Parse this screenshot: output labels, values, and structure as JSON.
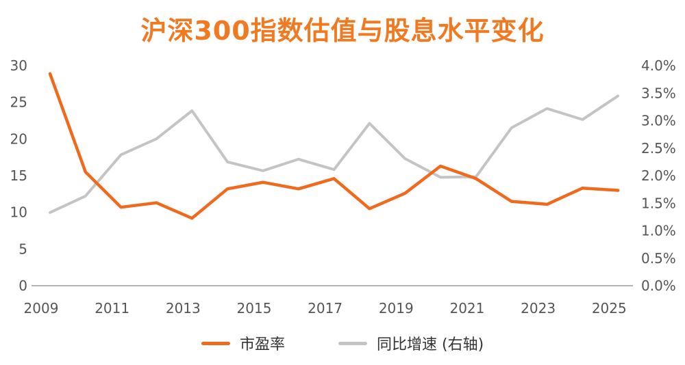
{
  "title": "沪深300指数估值与股息水平变化",
  "colors": {
    "title": "#f07a22",
    "pe": "#f06a1e",
    "yoy": "#c4c4c4",
    "axis": "#9a9a9a",
    "tick_text": "#555555"
  },
  "chart_data": {
    "type": "line",
    "title": "沪深300指数估值与股息水平变化",
    "x_ticks": [
      "2009",
      "2011",
      "2013",
      "2015",
      "2017",
      "2019",
      "2021",
      "2023",
      "2025"
    ],
    "y_left_ticks": [
      "0",
      "5",
      "10",
      "15",
      "20",
      "25",
      "30"
    ],
    "y_right_ticks": [
      "0.0%",
      "0.5%",
      "1.0%",
      "1.5%",
      "2.0%",
      "2.5%",
      "3.0%",
      "3.5%",
      "4.0%"
    ],
    "ylim_left": [
      0,
      30
    ],
    "ylim_right": [
      0,
      4.0
    ],
    "xlim": [
      2009,
      2025.4
    ],
    "grid": false,
    "legend_position": "bottom-center",
    "series": [
      {
        "name": "市盈率",
        "axis": "left",
        "x": [
          2009.25,
          2010.25,
          2011.25,
          2012.25,
          2013.25,
          2014.25,
          2015.25,
          2016.25,
          2017.25,
          2018.25,
          2019.25,
          2020.25,
          2021.25,
          2022.25,
          2023.25,
          2024.25,
          2025.25
        ],
        "values": [
          28.9,
          15.5,
          10.7,
          11.3,
          9.2,
          13.2,
          14.1,
          13.2,
          14.6,
          10.5,
          12.6,
          16.3,
          14.6,
          11.5,
          11.1,
          13.3,
          13.0
        ]
      },
      {
        "name": "同比增速 (右轴)",
        "axis": "right",
        "x": [
          2009.25,
          2010.25,
          2011.25,
          2012.25,
          2013.25,
          2014.25,
          2015.25,
          2016.25,
          2017.25,
          2018.25,
          2019.25,
          2020.25,
          2021.25,
          2022.25,
          2023.25,
          2024.25,
          2025.25
        ],
        "values": [
          1.33,
          1.63,
          2.38,
          2.67,
          3.18,
          2.25,
          2.09,
          2.3,
          2.11,
          2.95,
          2.31,
          1.97,
          1.98,
          2.87,
          3.22,
          3.02,
          3.45
        ]
      }
    ]
  },
  "legend": [
    {
      "label": "市盈率",
      "color": "#f06a1e"
    },
    {
      "label": "同比增速 (右轴)",
      "color": "#c4c4c4"
    }
  ]
}
